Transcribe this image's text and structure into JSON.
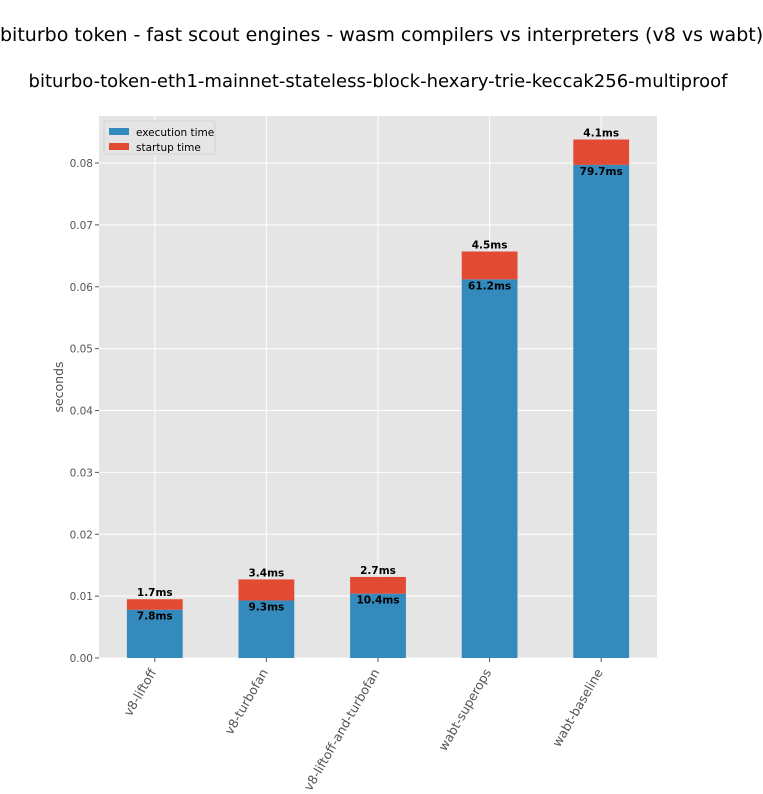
{
  "suptitle": "biturbo token - fast scout engines - wasm compilers vs interpreters (v8 vs wabt)",
  "chart_data": {
    "type": "bar",
    "stacked": true,
    "title": "biturbo-token-eth1-mainnet-stateless-block-hexary-trie-keccak256-multiproof",
    "xlabel": "",
    "ylabel": "seconds",
    "ylim": [
      0,
      0.0876
    ],
    "yticks": [
      "0.00",
      "0.01",
      "0.02",
      "0.03",
      "0.04",
      "0.05",
      "0.06",
      "0.07",
      "0.08"
    ],
    "grid": true,
    "legend_position": "top-left",
    "categories": [
      "v8-liftoff",
      "v8-turbofan",
      "v8-liftoff-and-turbofan",
      "wabt-superops",
      "wabt-baseline"
    ],
    "series": [
      {
        "name": "execution time",
        "color": "#348abd",
        "values": [
          0.0078,
          0.0093,
          0.0104,
          0.0612,
          0.0797
        ],
        "labels": [
          "7.8ms",
          "9.3ms",
          "10.4ms",
          "61.2ms",
          "79.7ms"
        ]
      },
      {
        "name": "startup time",
        "color": "#e24a33",
        "values": [
          0.0017,
          0.0034,
          0.0027,
          0.0045,
          0.0041
        ],
        "labels": [
          "1.7ms",
          "3.4ms",
          "2.7ms",
          "4.5ms",
          "4.1ms"
        ]
      }
    ]
  }
}
